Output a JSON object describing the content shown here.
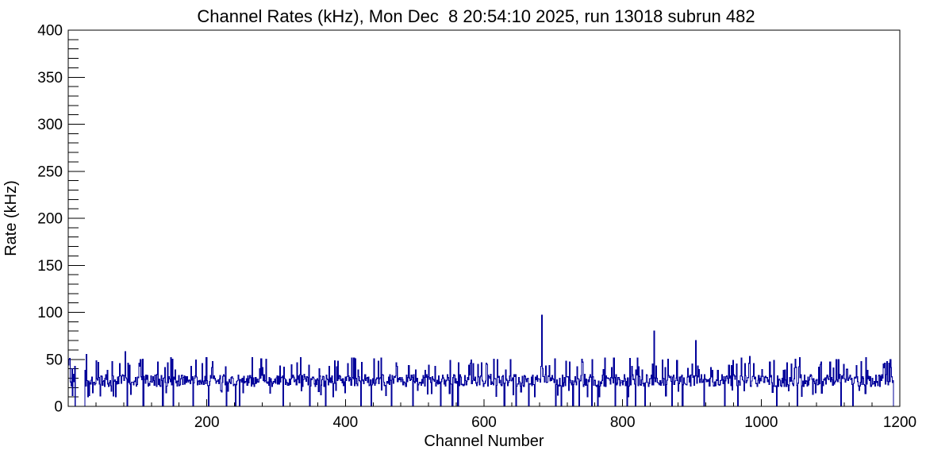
{
  "chart_data": {
    "type": "histogram",
    "title": "Channel Rates (kHz), Mon Dec  8 20:54:10 2025, run 13018 subrun 482",
    "xlabel": "Channel Number",
    "ylabel": "Rate (kHz)",
    "xlim": [
      0,
      1200
    ],
    "ylim": [
      0,
      400
    ],
    "x_major_ticks": [
      200,
      400,
      600,
      800,
      1000,
      1200
    ],
    "x_minor_step": 40,
    "y_major_ticks": [
      0,
      50,
      100,
      150,
      200,
      250,
      300,
      350,
      400
    ],
    "y_minor_step": 10,
    "grid": false,
    "legend": "none",
    "frame_color": "#000000",
    "line_color": "#00009a",
    "series": {
      "name": "channel_rates",
      "bins": 1200,
      "bin_width": 1,
      "baseline": {
        "mean": 27,
        "low": 21,
        "high": 34
      },
      "common_spikes": {
        "fraction": 0.15,
        "min": 38,
        "max": 52
      },
      "dips": {
        "fraction": 0.05,
        "min": 10,
        "max": 18
      },
      "noise_seed": 13018,
      "notable_spikes": [
        [
          0,
          44
        ],
        [
          1,
          50
        ],
        [
          2,
          51
        ],
        [
          26,
          55
        ],
        [
          82,
          58
        ],
        [
          683,
          97
        ],
        [
          845,
          80
        ],
        [
          905,
          70
        ],
        [
          983,
          53
        ],
        [
          1055,
          52
        ]
      ],
      "zero_ranges": [
        [
          10,
          24
        ],
        [
          1191,
          1200
        ]
      ],
      "zero_channels": [
        85,
        108,
        136,
        151,
        180,
        202,
        228,
        241,
        247,
        310,
        348,
        371,
        422,
        437,
        466,
        497,
        537,
        554,
        562,
        629,
        646,
        664,
        703,
        711,
        728,
        737,
        755,
        764,
        789,
        806,
        818,
        832,
        871,
        886,
        917,
        947,
        966,
        1022,
        1052,
        1115,
        1132
      ]
    }
  }
}
